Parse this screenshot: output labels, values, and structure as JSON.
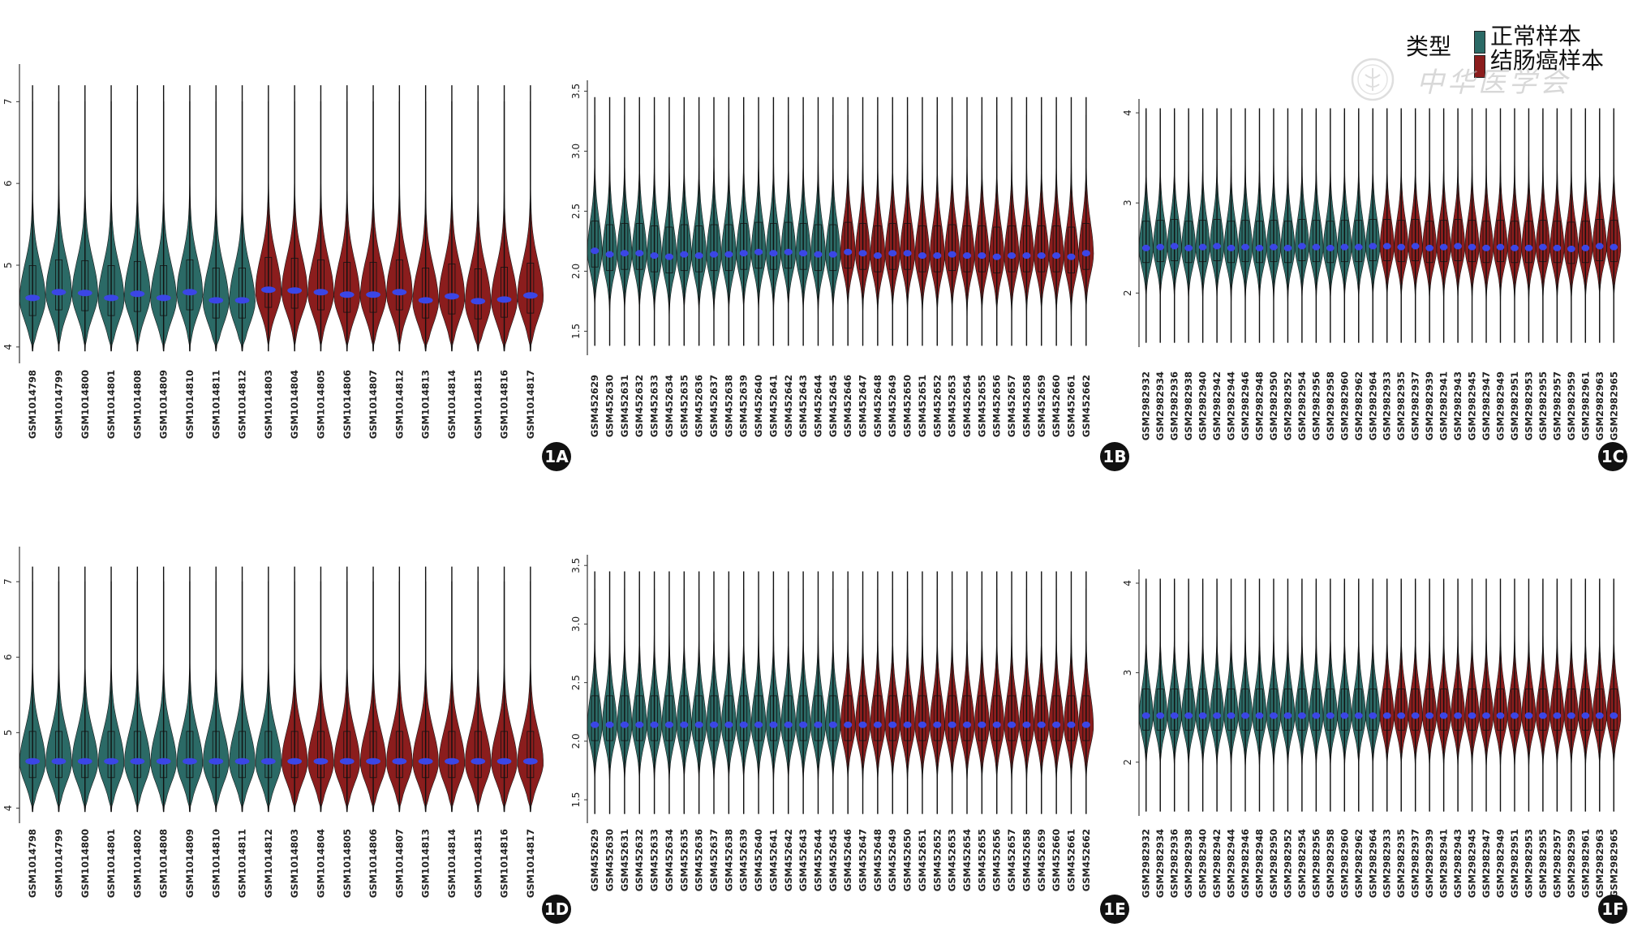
{
  "legend": {
    "title": "类型",
    "items": [
      "正常样本",
      "结肠癌样本"
    ]
  },
  "watermark": {
    "text": "中华医学会"
  },
  "colors": {
    "normal": "#2b6a66",
    "tumor": "#8b1d1d",
    "median": "#3b46e6",
    "axis": "#333333",
    "badge": "#111111"
  },
  "chart_data": [
    {
      "type": "violin",
      "badge": "1A",
      "ylim": [
        3.8,
        7.4
      ],
      "yticks": [
        "4",
        "5",
        "6",
        "7"
      ],
      "categories": [
        "GSM1014798",
        "GSM1014799",
        "GSM1014800",
        "GSM1014801",
        "GSM1014808",
        "GSM1014809",
        "GSM1014810",
        "GSM1014811",
        "GSM1014812",
        "GSM1014803",
        "GSM1014804",
        "GSM1014805",
        "GSM1014806",
        "GSM1014807",
        "GSM1014812",
        "GSM1014813",
        "GSM1014814",
        "GSM1014815",
        "GSM1014816",
        "GSM1014817"
      ],
      "normal_count": 9,
      "medians": [
        4.6,
        4.67,
        4.66,
        4.6,
        4.65,
        4.6,
        4.67,
        4.57,
        4.57,
        4.7,
        4.69,
        4.67,
        4.64,
        4.64,
        4.67,
        4.57,
        4.62,
        4.56,
        4.58,
        4.63
      ],
      "max": 7.0,
      "min": 3.95,
      "upper_whisker": 7.2
    },
    {
      "type": "violin",
      "badge": "1B",
      "ylim": [
        1.3,
        3.55
      ],
      "yticks": [
        "1.5",
        "2.0",
        "2.5",
        "3.0",
        "3.5"
      ],
      "categories": [
        "GSM452629",
        "GSM452630",
        "GSM452631",
        "GSM452632",
        "GSM452633",
        "GSM452634",
        "GSM452635",
        "GSM452636",
        "GSM452637",
        "GSM452638",
        "GSM452639",
        "GSM452640",
        "GSM452641",
        "GSM452642",
        "GSM452643",
        "GSM452644",
        "GSM452645",
        "GSM452646",
        "GSM452647",
        "GSM452648",
        "GSM452649",
        "GSM452650",
        "GSM452651",
        "GSM452652",
        "GSM452653",
        "GSM452654",
        "GSM452655",
        "GSM452656",
        "GSM452657",
        "GSM452658",
        "GSM452659",
        "GSM452660",
        "GSM452661",
        "GSM452662"
      ],
      "normal_count": 17,
      "medians": [
        2.17,
        2.14,
        2.15,
        2.15,
        2.13,
        2.12,
        2.14,
        2.13,
        2.14,
        2.14,
        2.15,
        2.16,
        2.15,
        2.16,
        2.15,
        2.14,
        2.14,
        2.16,
        2.15,
        2.13,
        2.15,
        2.15,
        2.13,
        2.13,
        2.14,
        2.13,
        2.13,
        2.12,
        2.13,
        2.13,
        2.13,
        2.13,
        2.12,
        2.15
      ],
      "max": 3.3,
      "min": 1.38,
      "upper_whisker": 3.45
    },
    {
      "type": "violin",
      "badge": "1C",
      "ylim": [
        1.4,
        4.1
      ],
      "yticks": [
        "2",
        "3",
        "4"
      ],
      "categories": [
        "GSM2982932",
        "GSM2982934",
        "GSM2982936",
        "GSM2982938",
        "GSM2982940",
        "GSM2982942",
        "GSM2982944",
        "GSM2982946",
        "GSM2982948",
        "GSM2982950",
        "GSM2982952",
        "GSM2982954",
        "GSM2982956",
        "GSM2982958",
        "GSM2982960",
        "GSM2982962",
        "GSM2982964",
        "GSM2982933",
        "GSM2982935",
        "GSM2982937",
        "GSM2982939",
        "GSM2982941",
        "GSM2982943",
        "GSM2982945",
        "GSM2982947",
        "GSM2982949",
        "GSM2982951",
        "GSM2982953",
        "GSM2982955",
        "GSM2982957",
        "GSM2982959",
        "GSM2982961",
        "GSM2982963",
        "GSM2982965"
      ],
      "normal_count": 17,
      "medians": [
        2.5,
        2.51,
        2.52,
        2.5,
        2.51,
        2.52,
        2.5,
        2.51,
        2.5,
        2.51,
        2.5,
        2.52,
        2.51,
        2.5,
        2.51,
        2.51,
        2.52,
        2.52,
        2.51,
        2.52,
        2.5,
        2.51,
        2.52,
        2.51,
        2.5,
        2.51,
        2.5,
        2.5,
        2.51,
        2.5,
        2.49,
        2.5,
        2.52,
        2.51
      ],
      "max": 4.0,
      "min": 1.45,
      "upper_whisker": 4.05
    },
    {
      "type": "violin",
      "badge": "1D",
      "ylim": [
        3.8,
        7.4
      ],
      "yticks": [
        "4",
        "5",
        "6",
        "7"
      ],
      "categories": [
        "GSM1014798",
        "GSM1014799",
        "GSM1014800",
        "GSM1014801",
        "GSM1014802",
        "GSM1014808",
        "GSM1014809",
        "GSM1014810",
        "GSM1014811",
        "GSM1014812",
        "GSM1014803",
        "GSM1014804",
        "GSM1014805",
        "GSM1014806",
        "GSM1014807",
        "GSM1014813",
        "GSM1014814",
        "GSM1014815",
        "GSM1014816",
        "GSM1014817"
      ],
      "normal_count": 10,
      "medians": [
        4.62,
        4.62,
        4.62,
        4.62,
        4.62,
        4.62,
        4.62,
        4.62,
        4.62,
        4.62,
        4.62,
        4.62,
        4.62,
        4.62,
        4.62,
        4.62,
        4.62,
        4.62,
        4.62,
        4.62
      ],
      "max": 7.0,
      "min": 3.95,
      "upper_whisker": 7.2
    },
    {
      "type": "violin",
      "badge": "1E",
      "ylim": [
        1.3,
        3.55
      ],
      "yticks": [
        "1.5",
        "2.0",
        "2.5",
        "3.0",
        "3.5"
      ],
      "categories": [
        "GSM452629",
        "GSM452630",
        "GSM452631",
        "GSM452632",
        "GSM452633",
        "GSM452634",
        "GSM452635",
        "GSM452636",
        "GSM452637",
        "GSM452638",
        "GSM452639",
        "GSM452640",
        "GSM452641",
        "GSM452642",
        "GSM452643",
        "GSM452644",
        "GSM452645",
        "GSM452646",
        "GSM452647",
        "GSM452648",
        "GSM452649",
        "GSM452650",
        "GSM452651",
        "GSM452652",
        "GSM452653",
        "GSM452654",
        "GSM452655",
        "GSM452656",
        "GSM452657",
        "GSM452658",
        "GSM452659",
        "GSM452660",
        "GSM452661",
        "GSM452662"
      ],
      "normal_count": 17,
      "medians": [
        2.14,
        2.14,
        2.14,
        2.14,
        2.14,
        2.14,
        2.14,
        2.14,
        2.14,
        2.14,
        2.14,
        2.14,
        2.14,
        2.14,
        2.14,
        2.14,
        2.14,
        2.14,
        2.14,
        2.14,
        2.14,
        2.14,
        2.14,
        2.14,
        2.14,
        2.14,
        2.14,
        2.14,
        2.14,
        2.14,
        2.14,
        2.14,
        2.14,
        2.14
      ],
      "max": 3.3,
      "min": 1.38,
      "upper_whisker": 3.45
    },
    {
      "type": "violin",
      "badge": "1F",
      "ylim": [
        1.4,
        4.1
      ],
      "yticks": [
        "2",
        "3",
        "4"
      ],
      "categories": [
        "GSM2982932",
        "GSM2982934",
        "GSM2982936",
        "GSM2982938",
        "GSM2982940",
        "GSM2982942",
        "GSM2982944",
        "GSM2982946",
        "GSM2982948",
        "GSM2982950",
        "GSM2982952",
        "GSM2982954",
        "GSM2982956",
        "GSM2982958",
        "GSM2982960",
        "GSM2982962",
        "GSM2982964",
        "GSM2982933",
        "GSM2982935",
        "GSM2982937",
        "GSM2982939",
        "GSM2982941",
        "GSM2982943",
        "GSM2982945",
        "GSM2982947",
        "GSM2982949",
        "GSM2982951",
        "GSM2982953",
        "GSM2982955",
        "GSM2982957",
        "GSM2982959",
        "GSM2982961",
        "GSM2982963",
        "GSM2982965"
      ],
      "normal_count": 17,
      "medians": [
        2.52,
        2.52,
        2.52,
        2.52,
        2.52,
        2.52,
        2.52,
        2.52,
        2.52,
        2.52,
        2.52,
        2.52,
        2.52,
        2.52,
        2.52,
        2.52,
        2.52,
        2.52,
        2.52,
        2.52,
        2.52,
        2.52,
        2.52,
        2.52,
        2.52,
        2.52,
        2.52,
        2.52,
        2.52,
        2.52,
        2.52,
        2.52,
        2.52,
        2.52
      ],
      "max": 4.0,
      "min": 1.45,
      "upper_whisker": 4.05
    }
  ]
}
